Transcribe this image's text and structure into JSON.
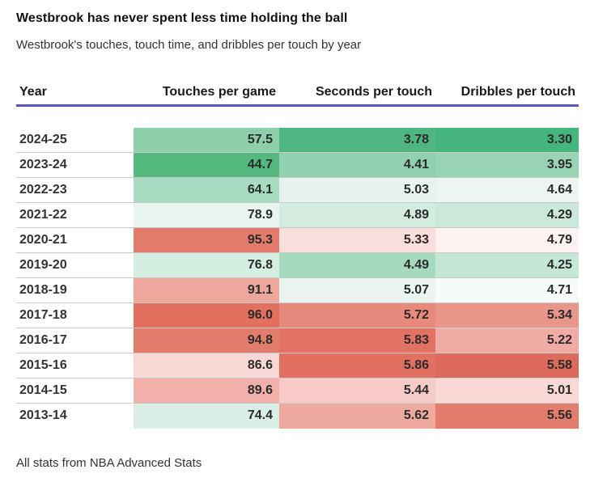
{
  "title": "Westbrook has never spent less time holding the ball",
  "subtitle": "Westbrook's touches, touch time, and dribbles per touch by year",
  "footer": "All stats from NBA Advanced Stats",
  "accent_colors": {
    "header_underline": "#5a55c4",
    "row_separator": "#c9c9c9",
    "scale_low_green": "#45b57d",
    "scale_high_red": "#e06a5a"
  },
  "table": {
    "headers": [
      "Year",
      "Touches per game",
      "Seconds per touch",
      "Dribbles per touch"
    ],
    "rows": [
      {
        "year": "2024-25",
        "cells": [
          {
            "value": "57.5",
            "color": "#8ccfa9"
          },
          {
            "value": "3.78",
            "color": "#4fb681"
          },
          {
            "value": "3.30",
            "color": "#45b57d"
          }
        ]
      },
      {
        "year": "2023-24",
        "cells": [
          {
            "value": "44.7",
            "color": "#53b97f"
          },
          {
            "value": "4.41",
            "color": "#92d1af"
          },
          {
            "value": "3.95",
            "color": "#98d3b3"
          }
        ]
      },
      {
        "year": "2022-23",
        "cells": [
          {
            "value": "64.1",
            "color": "#a7dcc0"
          },
          {
            "value": "5.03",
            "color": "#e7f4ed"
          },
          {
            "value": "4.64",
            "color": "#ecf6f1"
          }
        ]
      },
      {
        "year": "2021-22",
        "cells": [
          {
            "value": "78.9",
            "color": "#e9f5ef"
          },
          {
            "value": "4.89",
            "color": "#d3ecdf"
          },
          {
            "value": "4.29",
            "color": "#cbe9d9"
          }
        ]
      },
      {
        "year": "2020-21",
        "cells": [
          {
            "value": "95.3",
            "color": "#e27b6b"
          },
          {
            "value": "5.33",
            "color": "#f9dedc"
          },
          {
            "value": "4.79",
            "color": "#fdf2f1"
          }
        ]
      },
      {
        "year": "2019-20",
        "cells": [
          {
            "value": "76.8",
            "color": "#d5eee2"
          },
          {
            "value": "4.49",
            "color": "#a6dabf"
          },
          {
            "value": "4.25",
            "color": "#c5e7d5"
          }
        ]
      },
      {
        "year": "2018-19",
        "cells": [
          {
            "value": "91.1",
            "color": "#eda79d"
          },
          {
            "value": "5.07",
            "color": "#eaf5f0"
          },
          {
            "value": "4.71",
            "color": "#f6faf8"
          }
        ]
      },
      {
        "year": "2017-18",
        "cells": [
          {
            "value": "96.0",
            "color": "#e3705e"
          },
          {
            "value": "5.72",
            "color": "#e78a7c"
          },
          {
            "value": "5.34",
            "color": "#e9958a"
          }
        ]
      },
      {
        "year": "2016-17",
        "cells": [
          {
            "value": "94.8",
            "color": "#e27d6d"
          },
          {
            "value": "5.83",
            "color": "#e27263"
          },
          {
            "value": "5.22",
            "color": "#f0aca4"
          }
        ]
      },
      {
        "year": "2015-16",
        "cells": [
          {
            "value": "86.6",
            "color": "#f8d8d5"
          },
          {
            "value": "5.86",
            "color": "#e26f5f"
          },
          {
            "value": "5.58",
            "color": "#dd6a5a"
          }
        ]
      },
      {
        "year": "2014-15",
        "cells": [
          {
            "value": "89.6",
            "color": "#f1b0a9"
          },
          {
            "value": "5.44",
            "color": "#f6cac7"
          },
          {
            "value": "5.01",
            "color": "#f9d8d5"
          }
        ]
      },
      {
        "year": "2013-14",
        "cells": [
          {
            "value": "74.4",
            "color": "#d9efe5"
          },
          {
            "value": "5.62",
            "color": "#eeaa9f"
          },
          {
            "value": "5.56",
            "color": "#e27c6c"
          }
        ]
      }
    ]
  },
  "chart_data": {
    "type": "heatmap",
    "title": "Westbrook has never spent less time holding the ball",
    "subtitle": "Westbrook's touches, touch time, and dribbles per touch by year",
    "columns": [
      "Year",
      "Touches per game",
      "Seconds per touch",
      "Dribbles per touch"
    ],
    "rows": [
      [
        "2024-25",
        57.5,
        3.78,
        3.3
      ],
      [
        "2023-24",
        44.7,
        4.41,
        3.95
      ],
      [
        "2022-23",
        64.1,
        5.03,
        4.64
      ],
      [
        "2021-22",
        78.9,
        4.89,
        4.29
      ],
      [
        "2020-21",
        95.3,
        5.33,
        4.79
      ],
      [
        "2019-20",
        76.8,
        4.49,
        4.25
      ],
      [
        "2018-19",
        91.1,
        5.07,
        4.71
      ],
      [
        "2017-18",
        96.0,
        5.72,
        5.34
      ],
      [
        "2016-17",
        94.8,
        5.83,
        5.22
      ],
      [
        "2015-16",
        86.6,
        5.86,
        5.58
      ],
      [
        "2014-15",
        89.6,
        5.44,
        5.01
      ],
      [
        "2013-14",
        74.4,
        5.62,
        5.56
      ]
    ],
    "legend_position": "none",
    "color_scale": "diverging green (low value) to red (high value), ranked within each numeric column",
    "note": "All stats from NBA Advanced Stats"
  }
}
